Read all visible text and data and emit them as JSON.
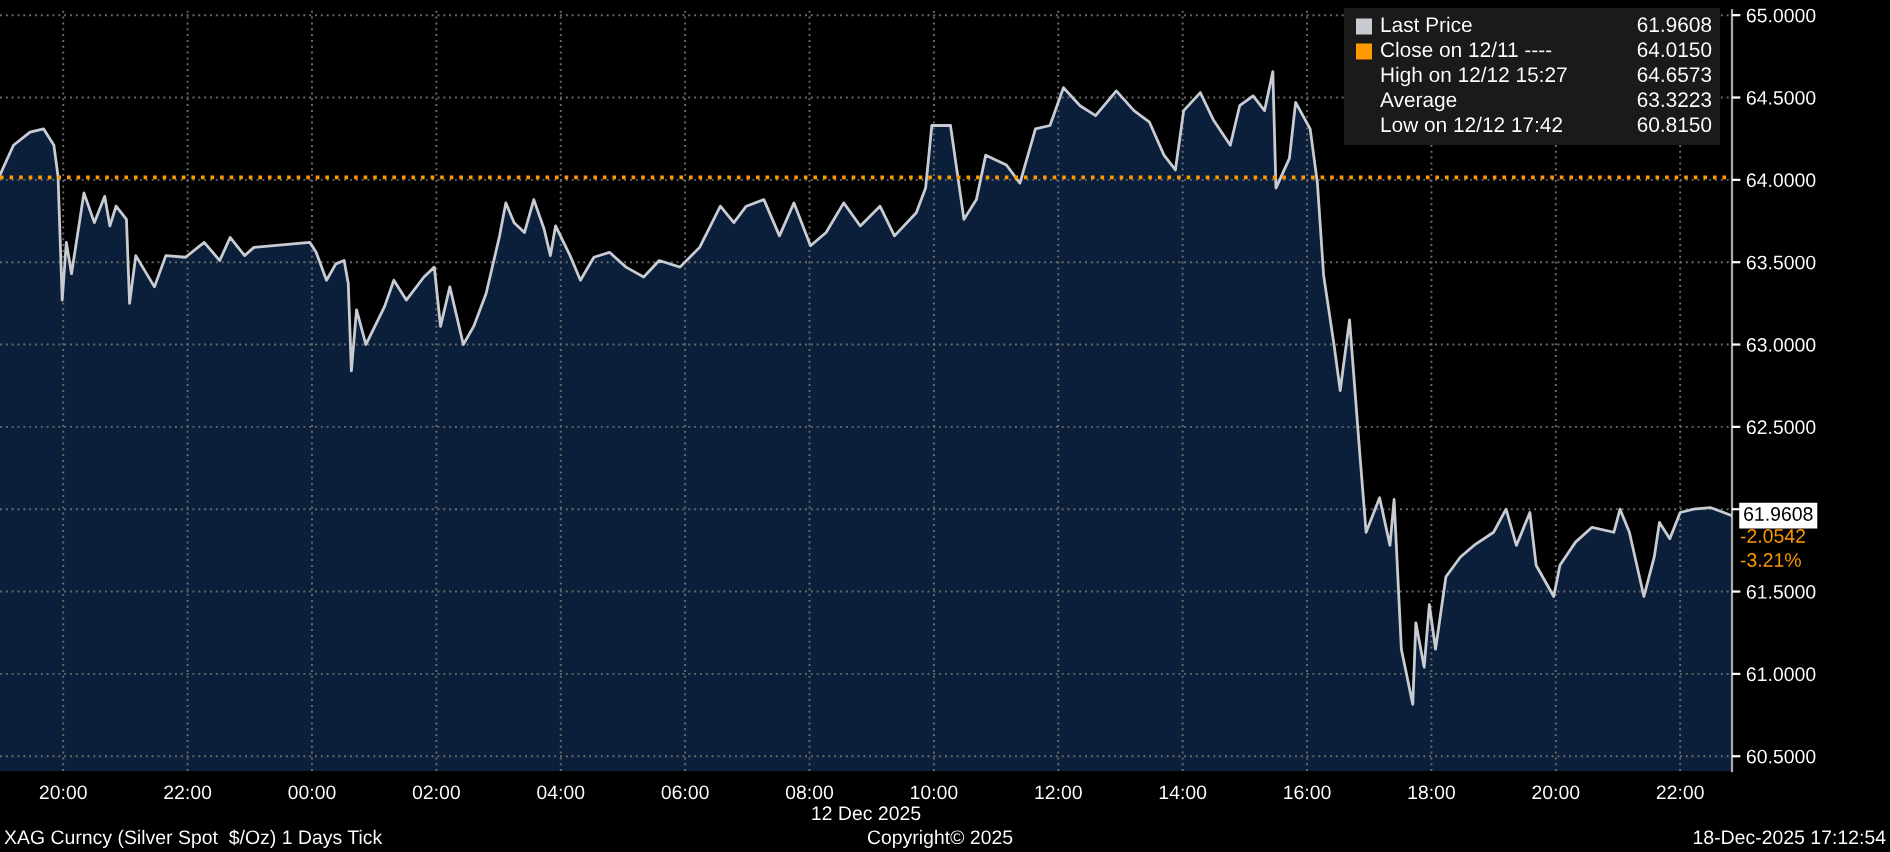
{
  "chart_data": {
    "type": "area",
    "xlabel": "12 Dec 2025",
    "x": [
      "2025-12-11T18:59",
      "2025-12-11T19:12",
      "2025-12-11T19:28",
      "2025-12-11T19:41",
      "2025-12-11T19:51",
      "2025-12-11T19:55",
      "2025-12-11T19:59",
      "2025-12-11T20:03",
      "2025-12-11T20:08",
      "2025-12-11T20:20",
      "2025-12-11T20:30",
      "2025-12-11T20:40",
      "2025-12-11T20:45",
      "2025-12-11T20:51",
      "2025-12-11T21:01",
      "2025-12-11T21:04",
      "2025-12-11T21:10",
      "2025-12-11T21:28",
      "2025-12-11T21:39",
      "2025-12-11T21:58",
      "2025-12-11T22:16",
      "2025-12-11T22:31",
      "2025-12-11T22:41",
      "2025-12-11T22:55",
      "2025-12-11T23:04",
      "2025-12-11T23:58",
      "2025-12-12T00:04",
      "2025-12-12T00:14",
      "2025-12-12T00:23",
      "2025-12-12T00:31",
      "2025-12-12T00:35",
      "2025-12-12T00:38",
      "2025-12-12T00:43",
      "2025-12-12T00:52",
      "2025-12-12T01:10",
      "2025-12-12T01:19",
      "2025-12-12T01:31",
      "2025-12-12T01:48",
      "2025-12-12T01:58",
      "2025-12-12T02:04",
      "2025-12-12T02:13",
      "2025-12-12T02:26",
      "2025-12-12T02:36",
      "2025-12-12T02:48",
      "2025-12-12T03:01",
      "2025-12-12T03:07",
      "2025-12-12T03:15",
      "2025-12-12T03:25",
      "2025-12-12T03:34",
      "2025-12-12T03:44",
      "2025-12-12T03:50",
      "2025-12-12T03:55",
      "2025-12-12T04:09",
      "2025-12-12T04:19",
      "2025-12-12T04:32",
      "2025-12-12T04:47",
      "2025-12-12T05:03",
      "2025-12-12T05:20",
      "2025-12-12T05:35",
      "2025-12-12T05:55",
      "2025-12-12T06:14",
      "2025-12-12T06:34",
      "2025-12-12T06:47",
      "2025-12-12T06:59",
      "2025-12-12T07:16",
      "2025-12-12T07:31",
      "2025-12-12T07:45",
      "2025-12-12T08:01",
      "2025-12-12T08:16",
      "2025-12-12T08:33",
      "2025-12-12T08:49",
      "2025-12-12T09:08",
      "2025-12-12T09:22",
      "2025-12-12T09:43",
      "2025-12-12T09:52",
      "2025-12-12T09:58",
      "2025-12-12T10:16",
      "2025-12-12T10:29",
      "2025-12-12T10:41",
      "2025-12-12T10:50",
      "2025-12-12T11:10",
      "2025-12-12T11:23",
      "2025-12-12T11:38",
      "2025-12-12T11:52",
      "2025-12-12T12:05",
      "2025-12-12T12:21",
      "2025-12-12T12:36",
      "2025-12-12T12:56",
      "2025-12-12T13:13",
      "2025-12-12T13:28",
      "2025-12-12T13:42",
      "2025-12-12T13:53",
      "2025-12-12T14:01",
      "2025-12-12T14:17",
      "2025-12-12T14:30",
      "2025-12-12T14:46",
      "2025-12-12T14:55",
      "2025-12-12T15:08",
      "2025-12-12T15:19",
      "2025-12-12T15:27",
      "2025-12-12T15:30",
      "2025-12-12T15:43",
      "2025-12-12T15:49",
      "2025-12-12T16:03",
      "2025-12-12T16:10",
      "2025-12-12T16:16",
      "2025-12-12T16:26",
      "2025-12-12T16:32",
      "2025-12-12T16:41",
      "2025-12-12T16:51",
      "2025-12-12T16:57",
      "2025-12-12T17:10",
      "2025-12-12T17:20",
      "2025-12-12T17:24",
      "2025-12-12T17:31",
      "2025-12-12T17:42",
      "2025-12-12T17:45",
      "2025-12-12T17:53",
      "2025-12-12T17:58",
      "2025-12-12T18:04",
      "2025-12-12T18:14",
      "2025-12-12T18:28",
      "2025-12-12T18:41",
      "2025-12-12T19:00",
      "2025-12-12T19:12",
      "2025-12-12T19:22",
      "2025-12-12T19:35",
      "2025-12-12T19:41",
      "2025-12-12T19:58",
      "2025-12-12T20:04",
      "2025-12-12T20:19",
      "2025-12-12T20:35",
      "2025-12-12T20:56",
      "2025-12-12T21:02",
      "2025-12-12T21:11",
      "2025-12-12T21:25",
      "2025-12-12T21:35",
      "2025-12-12T21:40",
      "2025-12-12T21:50",
      "2025-12-12T22:00",
      "2025-12-12T22:13",
      "2025-12-12T22:29",
      "2025-12-12T22:42",
      "2025-12-12T22:50"
    ],
    "series": [
      {
        "name": "Last Price",
        "color": "#c8ccd2",
        "values": [
          64.03,
          64.21,
          64.29,
          64.31,
          64.21,
          64.02,
          63.27,
          63.62,
          63.43,
          63.92,
          63.74,
          63.9,
          63.72,
          63.84,
          63.76,
          63.25,
          63.54,
          63.35,
          63.54,
          63.53,
          63.62,
          63.51,
          63.65,
          63.54,
          63.59,
          63.62,
          63.56,
          63.39,
          63.49,
          63.51,
          63.37,
          62.84,
          63.21,
          63.0,
          63.23,
          63.39,
          63.27,
          63.41,
          63.47,
          63.11,
          63.35,
          63.0,
          63.11,
          63.31,
          63.66,
          63.86,
          63.74,
          63.68,
          63.88,
          63.7,
          63.54,
          63.72,
          63.54,
          63.39,
          63.53,
          63.56,
          63.47,
          63.41,
          63.51,
          63.47,
          63.59,
          63.84,
          63.74,
          63.84,
          63.88,
          63.66,
          63.86,
          63.6,
          63.68,
          63.86,
          63.72,
          63.84,
          63.66,
          63.8,
          63.95,
          64.33,
          64.33,
          63.76,
          63.88,
          64.15,
          64.09,
          63.98,
          64.31,
          64.33,
          64.56,
          64.45,
          64.39,
          64.54,
          64.42,
          64.35,
          64.15,
          64.06,
          64.42,
          64.53,
          64.36,
          64.21,
          64.45,
          64.51,
          64.42,
          64.6573,
          63.95,
          64.13,
          64.47,
          64.31,
          63.98,
          63.42,
          63.0,
          62.72,
          63.15,
          62.33,
          61.86,
          62.07,
          61.78,
          62.06,
          61.15,
          60.815,
          61.31,
          61.04,
          61.42,
          61.15,
          61.59,
          61.71,
          61.78,
          61.86,
          62.0,
          61.78,
          61.98,
          61.66,
          61.47,
          61.66,
          61.8,
          61.89,
          61.86,
          62.0,
          61.86,
          61.47,
          61.71,
          61.92,
          61.82,
          61.98,
          62.0,
          62.01,
          61.98,
          61.9608
        ]
      }
    ],
    "xlim": [
      "2025-12-11T18:59",
      "2025-12-12T22:50"
    ],
    "xticks": [
      {
        "value": "2025-12-11T20:00",
        "label": "20:00"
      },
      {
        "value": "2025-12-11T22:00",
        "label": "22:00"
      },
      {
        "value": "2025-12-12T00:00",
        "label": "00:00"
      },
      {
        "value": "2025-12-12T02:00",
        "label": "02:00"
      },
      {
        "value": "2025-12-12T04:00",
        "label": "04:00"
      },
      {
        "value": "2025-12-12T06:00",
        "label": "06:00"
      },
      {
        "value": "2025-12-12T08:00",
        "label": "08:00"
      },
      {
        "value": "2025-12-12T10:00",
        "label": "10:00"
      },
      {
        "value": "2025-12-12T12:00",
        "label": "12:00"
      },
      {
        "value": "2025-12-12T14:00",
        "label": "14:00"
      },
      {
        "value": "2025-12-12T16:00",
        "label": "16:00"
      },
      {
        "value": "2025-12-12T18:00",
        "label": "18:00"
      },
      {
        "value": "2025-12-12T20:00",
        "label": "20:00"
      },
      {
        "value": "2025-12-12T22:00",
        "label": "22:00"
      }
    ],
    "ylim": [
      60.41,
      65.03
    ],
    "yticks": [
      {
        "value": 60.5,
        "label": "60.5000"
      },
      {
        "value": 61,
        "label": "61.0000"
      },
      {
        "value": 61.5,
        "label": "61.5000"
      },
      {
        "value": 62,
        "label": null
      },
      {
        "value": 62.5,
        "label": "62.5000"
      },
      {
        "value": 63,
        "label": "63.0000"
      },
      {
        "value": 63.5,
        "label": "63.5000"
      },
      {
        "value": 64,
        "label": "64.0000"
      },
      {
        "value": 64.5,
        "label": "64.5000"
      },
      {
        "value": 65,
        "label": "65.0000"
      }
    ],
    "ref_lines": [
      {
        "axis": "y",
        "value": 64.015,
        "label": "Close on 12/11 ----",
        "color": "#ff9900",
        "line_style": "dotted"
      }
    ],
    "annotations": [
      "61.9608",
      "64.0150",
      "High on 12/12 15:27",
      "64.6573",
      "Average",
      "63.3223",
      "Low on 12/12 17:42",
      "60.8150",
      {
        "text": "61.9608",
        "x": "2025-12-12T22:50",
        "y": 61.9608
      },
      "-2.0542",
      "-3.21%",
      "XAG Curncy (Silver Spot  $/Oz) 1 Days Tick",
      "Copyright© 2025",
      "18-Dec-2025 17:12:54"
    ],
    "grid": true,
    "legend": "top right",
    "line_style": "solid",
    "marker": "none"
  }
}
